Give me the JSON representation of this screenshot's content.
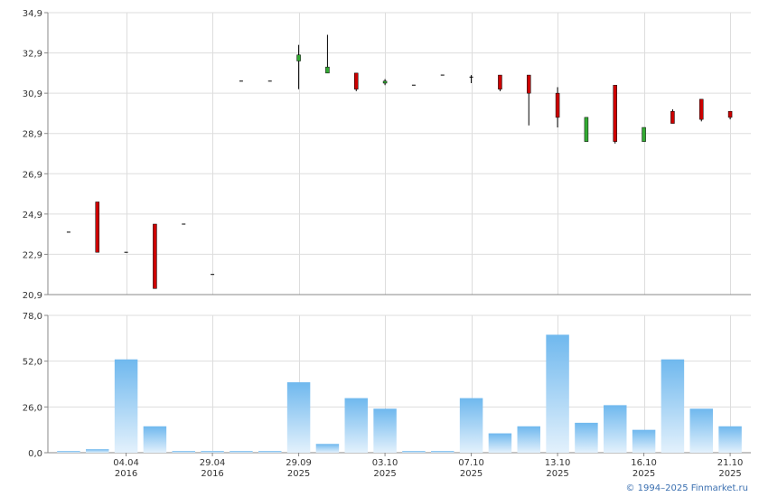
{
  "chart_data": [
    {
      "type": "candlestick",
      "ylim": [
        20.9,
        34.9
      ],
      "y_ticks": [
        "34,9",
        "32,9",
        "30,9",
        "28,9",
        "26,9",
        "24,9",
        "22,9",
        "20,9"
      ],
      "x_ticks": [
        {
          "slot": 2,
          "line1": "04.04",
          "line2": "2016"
        },
        {
          "slot": 5,
          "line1": "29.04",
          "line2": "2016"
        },
        {
          "slot": 8,
          "line1": "29.09",
          "line2": "2025"
        },
        {
          "slot": 11,
          "line1": "03.10",
          "line2": "2025"
        },
        {
          "slot": 14,
          "line1": "07.10",
          "line2": "2025"
        },
        {
          "slot": 17,
          "line1": "13.10",
          "line2": "2025"
        },
        {
          "slot": 20,
          "line1": "16.10",
          "line2": "2025"
        },
        {
          "slot": 23,
          "line1": "21.10",
          "line2": "2025"
        }
      ],
      "candles": [
        {
          "o": 24.0,
          "h": 24.0,
          "l": 24.0,
          "c": 24.0
        },
        {
          "o": 25.5,
          "h": 25.5,
          "l": 23.0,
          "c": 23.0
        },
        {
          "o": 23.0,
          "h": 23.0,
          "l": 23.0,
          "c": 23.0
        },
        {
          "o": 24.4,
          "h": 24.4,
          "l": 21.2,
          "c": 21.2
        },
        {
          "o": 24.4,
          "h": 24.4,
          "l": 24.4,
          "c": 24.4
        },
        {
          "o": 21.9,
          "h": 21.9,
          "l": 21.9,
          "c": 21.9
        },
        {
          "o": 31.5,
          "h": 31.5,
          "l": 31.5,
          "c": 31.5
        },
        {
          "o": 31.5,
          "h": 31.5,
          "l": 31.5,
          "c": 31.5
        },
        {
          "o": 32.5,
          "h": 33.3,
          "l": 31.1,
          "c": 32.8
        },
        {
          "o": 31.9,
          "h": 33.8,
          "l": 31.9,
          "c": 32.2
        },
        {
          "o": 31.9,
          "h": 31.9,
          "l": 31.0,
          "c": 31.1
        },
        {
          "o": 31.4,
          "h": 31.6,
          "l": 31.3,
          "c": 31.5
        },
        {
          "o": 31.3,
          "h": 31.3,
          "l": 31.3,
          "c": 31.3
        },
        {
          "o": 31.8,
          "h": 31.8,
          "l": 31.8,
          "c": 31.8
        },
        {
          "o": 31.7,
          "h": 31.8,
          "l": 31.4,
          "c": 31.7
        },
        {
          "o": 31.8,
          "h": 31.8,
          "l": 31.0,
          "c": 31.1
        },
        {
          "o": 31.8,
          "h": 31.8,
          "l": 29.3,
          "c": 30.9
        },
        {
          "o": 30.9,
          "h": 31.2,
          "l": 29.2,
          "c": 29.7
        },
        {
          "o": 28.5,
          "h": 29.7,
          "l": 28.5,
          "c": 29.7
        },
        {
          "o": 31.3,
          "h": 31.3,
          "l": 28.4,
          "c": 28.5
        },
        {
          "o": 28.5,
          "h": 29.2,
          "l": 28.5,
          "c": 29.2
        },
        {
          "o": 30.0,
          "h": 30.1,
          "l": 29.4,
          "c": 29.4
        },
        {
          "o": 30.6,
          "h": 30.6,
          "l": 29.5,
          "c": 29.6
        },
        {
          "o": 30.0,
          "h": 30.0,
          "l": 29.6,
          "c": 29.7
        }
      ],
      "colors": {
        "down": "#cc0000",
        "up": "#33aa33",
        "wick": "#000000"
      }
    },
    {
      "type": "bar",
      "ylim": [
        0,
        78
      ],
      "y_ticks": [
        "78,0",
        "52,0",
        "26,0",
        "0,0"
      ],
      "values": [
        1,
        2,
        53,
        15,
        1,
        1,
        1,
        1,
        40,
        5,
        31,
        25,
        1,
        1,
        31,
        11,
        15,
        67,
        17,
        27,
        13,
        53,
        25,
        15
      ],
      "colors": {
        "top": "#6fb8ee",
        "bottom": "#e3f1fc"
      }
    }
  ],
  "footer": {
    "copyright": "© 1994–2025 Finmarket.ru"
  }
}
